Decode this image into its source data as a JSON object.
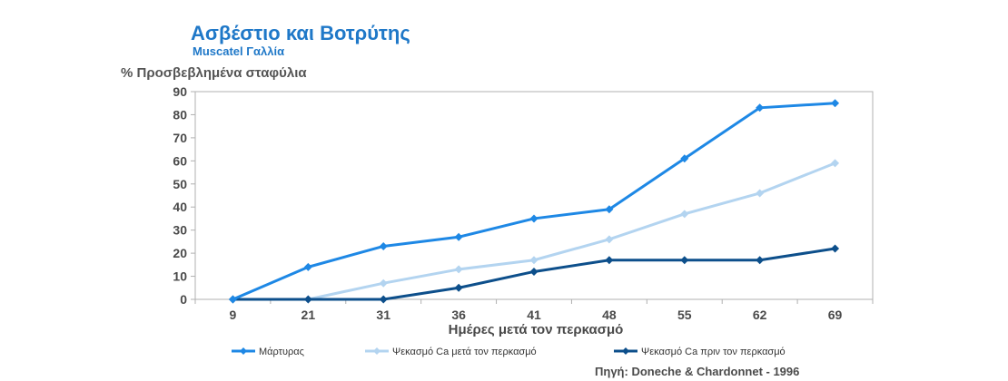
{
  "chart_data": {
    "type": "line",
    "title": "Ασβέστιο και Βοτρύτης",
    "subtitle": "Muscatel Γαλλία",
    "ylabel": "% Προσβεβλημένα σταφύλια",
    "xlabel": "Ημέρες μετά τον περκασμό",
    "categories": [
      "9",
      "21",
      "31",
      "36",
      "41",
      "48",
      "55",
      "62",
      "69"
    ],
    "ylim": [
      0,
      90
    ],
    "yticks": [
      0,
      10,
      20,
      30,
      40,
      50,
      60,
      70,
      80,
      90
    ],
    "grid": false,
    "legend_position": "bottom",
    "series": [
      {
        "name": "Μάρτυρας",
        "color": "#1e88e5",
        "values": [
          0,
          14,
          23,
          27,
          35,
          39,
          61,
          83,
          85
        ]
      },
      {
        "name": "Ψεκασμό Ca μετά τον περκασμό",
        "color": "#b3d4f0",
        "values": [
          0,
          0,
          7,
          13,
          17,
          26,
          37,
          46,
          59
        ]
      },
      {
        "name": "Ψεκασμό Ca πριν τον περκασμό",
        "color": "#0d4f8b",
        "values": [
          0,
          0,
          0,
          5,
          12,
          17,
          17,
          17,
          22
        ]
      }
    ],
    "source": "Πηγή: Doneche & Chardonnet - 1996"
  }
}
